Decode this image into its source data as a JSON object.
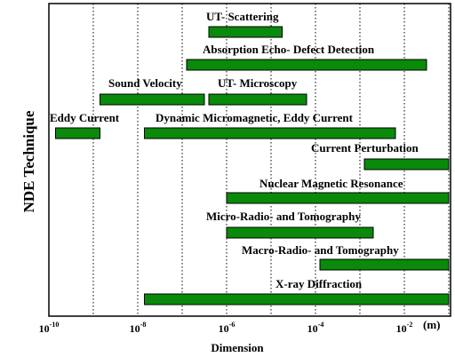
{
  "chart_data": {
    "type": "bar",
    "orientation": "horizontal-range",
    "ylabel": "NDE Technique",
    "xlabel": "Dimension",
    "x_scale": "log",
    "xlim": [
      -10,
      -1
    ],
    "x_tick_values": [
      -10,
      -8,
      -6,
      -4,
      -2
    ],
    "x_tick_labels": [
      "10",
      "10",
      "10",
      "10",
      "10"
    ],
    "x_tick_exponents": [
      "-10",
      "-8",
      "-6",
      "-4",
      "-2"
    ],
    "x_unit": "(m)",
    "grid": "vertical-dotted",
    "bar_color": "#0a8a0a",
    "series": [
      {
        "name": "UT- Scattering",
        "range": [
          -6.4,
          -4.75
        ]
      },
      {
        "name": "Absorption Echo- Defect Detection",
        "range": [
          -6.9,
          -1.5
        ]
      },
      {
        "name": "Sound Velocity",
        "range": [
          -8.85,
          -6.5
        ]
      },
      {
        "name": "UT- Microscopy",
        "range": [
          -6.4,
          -4.2
        ]
      },
      {
        "name": "Eddy Current",
        "range": [
          -9.85,
          -8.85
        ]
      },
      {
        "name": "Dynamic Micromagnetic, Eddy Current",
        "range": [
          -7.85,
          -2.2
        ]
      },
      {
        "name": "Current Perturbation",
        "range": [
          -2.9,
          -1.0
        ]
      },
      {
        "name": "Nuclear Magnetic Resonance",
        "range": [
          -6.0,
          -1.0
        ]
      },
      {
        "name": "Micro-Radio- and Tomography",
        "range": [
          -6.0,
          -2.7
        ]
      },
      {
        "name": "Macro-Radio- and Tomography",
        "range": [
          -3.9,
          -1.0
        ]
      },
      {
        "name": "X-ray Diffraction",
        "range": [
          -7.85,
          -1.0
        ]
      }
    ]
  }
}
